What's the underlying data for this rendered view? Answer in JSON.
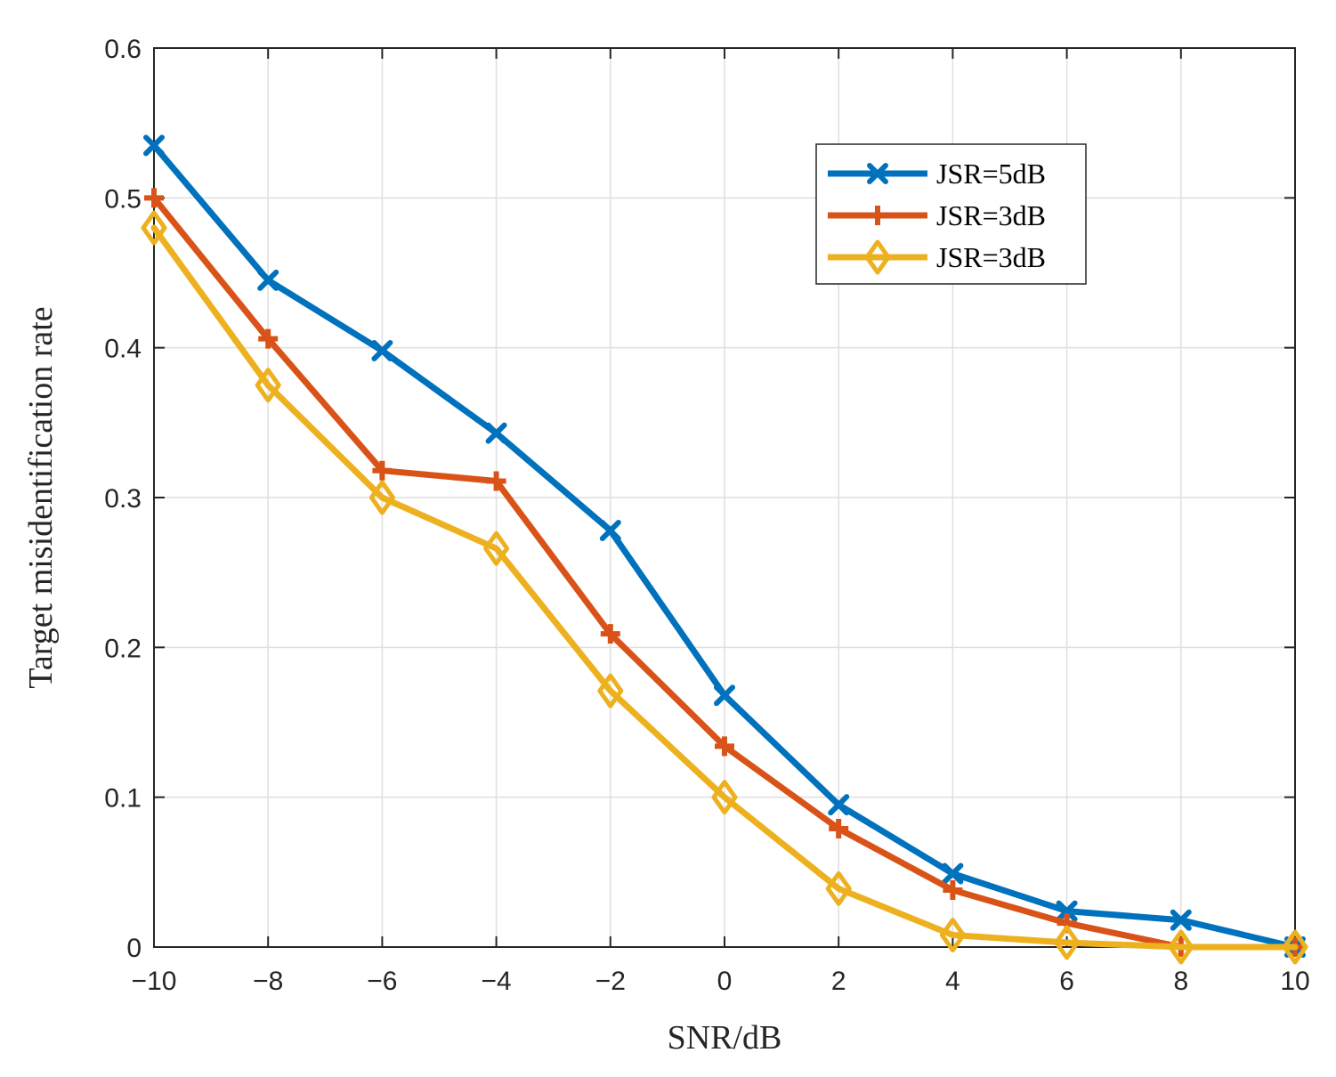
{
  "chart_data": {
    "type": "line",
    "title": "",
    "xlabel": "SNR/dB",
    "ylabel": "Target misidentification rate",
    "x": [
      -10,
      -8,
      -6,
      -4,
      -2,
      0,
      2,
      4,
      6,
      8,
      10
    ],
    "xticks": [
      -10,
      -8,
      -6,
      -4,
      -2,
      0,
      2,
      4,
      6,
      8,
      10
    ],
    "xtick_labels": [
      "−10",
      "−8",
      "−6",
      "−4",
      "−2",
      "0",
      "2",
      "4",
      "6",
      "8",
      "10"
    ],
    "yticks": [
      0,
      0.1,
      0.2,
      0.3,
      0.4,
      0.5,
      0.6
    ],
    "ytick_labels": [
      "0",
      "0.1",
      "0.2",
      "0.3",
      "0.4",
      "0.5",
      "0.6"
    ],
    "xlim": [
      -10,
      10
    ],
    "ylim": [
      0,
      0.6
    ],
    "grid": true,
    "legend_position": "top-right",
    "series": [
      {
        "name": "JSR=5dB",
        "color": "#0072BD",
        "marker": "x",
        "values": [
          0.535,
          0.445,
          0.398,
          0.343,
          0.278,
          0.168,
          0.095,
          0.049,
          0.024,
          0.018,
          0.0
        ]
      },
      {
        "name": "JSR=3dB",
        "color": "#D95319",
        "marker": "plus",
        "values": [
          0.5,
          0.406,
          0.318,
          0.311,
          0.209,
          0.134,
          0.079,
          0.038,
          0.016,
          0.0,
          0.0
        ]
      },
      {
        "name": "JSR=3dB",
        "color": "#EDB120",
        "marker": "diamond",
        "values": [
          0.48,
          0.375,
          0.3,
          0.266,
          0.171,
          0.1,
          0.039,
          0.008,
          0.003,
          0.0,
          0.0
        ]
      }
    ]
  }
}
